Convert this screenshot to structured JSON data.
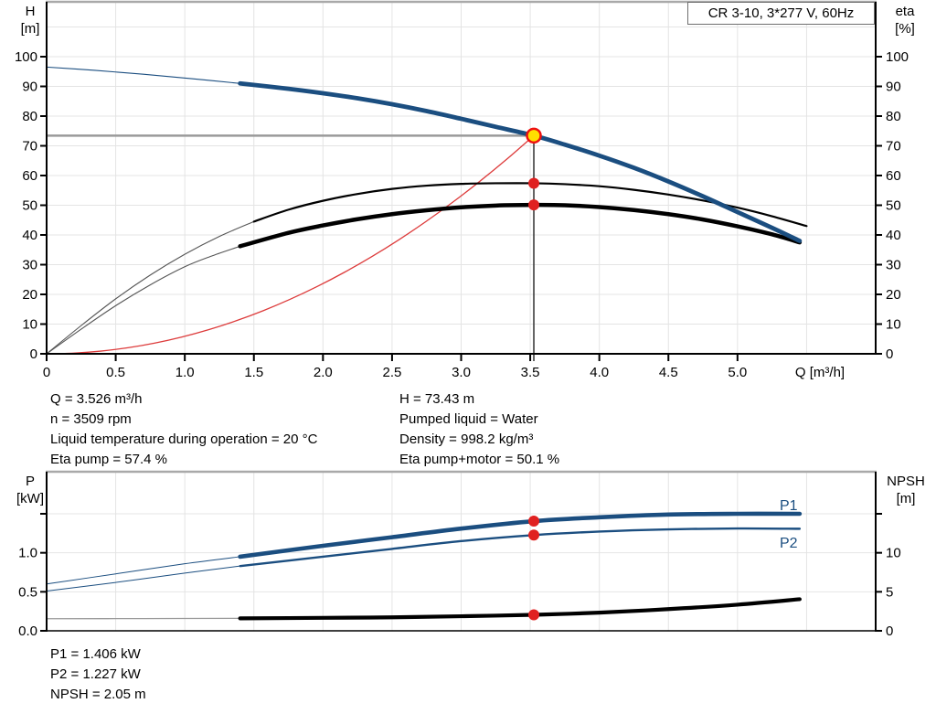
{
  "title_box": {
    "label": "CR 3-10, 3*277 V, 60Hz"
  },
  "colors": {
    "blue": "#1b4e80",
    "curve_black": "#000000",
    "red": "#e02020",
    "parabola_red": "#dd3b3b",
    "marker_fill": "#ffdf00",
    "marker_ring": "#ee1111",
    "grid": "#e4e4e4",
    "frame": "#a9a9a9",
    "duty_line_gray": "#9a9a9a",
    "duty_line_dark": "#3c3c3c",
    "thin_gray": "#555555",
    "npsh_thin_gray": "#999999"
  },
  "top_chart": {
    "left_axis_title": [
      "H",
      "[m]"
    ],
    "right_axis_title": [
      "eta",
      "[%]"
    ],
    "x_axis_title": "Q [m³/h]"
  },
  "bottom_chart": {
    "left_axis_title": [
      "P",
      "[kW]"
    ],
    "right_axis_title": [
      "NPSH",
      "[m]"
    ]
  },
  "annotations": {
    "left": [
      "Q = 3.526 m³/h",
      "n = 3509 rpm",
      "Liquid temperature during operation = 20 °C",
      "Eta pump = 57.4 %"
    ],
    "right": [
      "H = 73.43 m",
      "Pumped liquid = Water",
      "Density = 998.2 kg/m³",
      "Eta pump+motor = 50.1 %"
    ],
    "bottom": [
      "P1 = 1.406 kW",
      "P2 = 1.227 kW",
      "NPSH = 2.05 m"
    ]
  },
  "chart_data": [
    {
      "type": "line",
      "title": "CR 3-10, 3*277 V, 60Hz",
      "x_axis": {
        "label": "Q [m³/h]",
        "range": [
          0,
          6
        ],
        "grid_step": 0.5,
        "ticks": [
          {
            "v": 0,
            "label": "0"
          },
          {
            "v": 0.5,
            "label": "0.5"
          },
          {
            "v": 1,
            "label": "1.0"
          },
          {
            "v": 1.5,
            "label": "1.5"
          },
          {
            "v": 2,
            "label": "2.0"
          },
          {
            "v": 2.5,
            "label": "2.5"
          },
          {
            "v": 3,
            "label": "3.0"
          },
          {
            "v": 3.5,
            "label": "3.5"
          },
          {
            "v": 4,
            "label": "4.0"
          },
          {
            "v": 4.5,
            "label": "4.5"
          },
          {
            "v": 5,
            "label": "5.0"
          }
        ]
      },
      "y_left": {
        "label": "H [m]",
        "range": [
          0,
          118
        ],
        "ticks": [
          {
            "v": 0,
            "label": "0"
          },
          {
            "v": 10,
            "label": "10"
          },
          {
            "v": 20,
            "label": "20"
          },
          {
            "v": 30,
            "label": "30"
          },
          {
            "v": 40,
            "label": "40"
          },
          {
            "v": 50,
            "label": "50"
          },
          {
            "v": 60,
            "label": "60"
          },
          {
            "v": 70,
            "label": "70"
          },
          {
            "v": 80,
            "label": "80"
          },
          {
            "v": 90,
            "label": "90"
          },
          {
            "v": 100,
            "label": "100"
          }
        ]
      },
      "y_right": {
        "label": "eta [%]",
        "range": [
          0,
          118
        ],
        "ticks": [
          {
            "v": 0,
            "label": "0"
          },
          {
            "v": 10,
            "label": "10"
          },
          {
            "v": 20,
            "label": "20"
          },
          {
            "v": 30,
            "label": "30"
          },
          {
            "v": 40,
            "label": "40"
          },
          {
            "v": 50,
            "label": "50"
          },
          {
            "v": 60,
            "label": "60"
          },
          {
            "v": 70,
            "label": "70"
          },
          {
            "v": 80,
            "label": "80"
          },
          {
            "v": 90,
            "label": "90"
          },
          {
            "v": 100,
            "label": "100"
          }
        ]
      },
      "series": [
        {
          "name": "H",
          "label": "",
          "axis": "left",
          "color_key": "blue",
          "thick_from": 1.4,
          "x": [
            0,
            0.35,
            0.7,
            1.05,
            1.4,
            1.75,
            2,
            2.25,
            2.5,
            2.75,
            3,
            3.25,
            3.526,
            3.75,
            4,
            4.25,
            4.5,
            4.75,
            5,
            5.25,
            5.45
          ],
          "y": [
            96.5,
            95.4,
            94.1,
            92.6,
            91,
            89.2,
            87.7,
            86,
            84,
            81.7,
            79.1,
            76.4,
            73.43,
            70.4,
            66.7,
            62.6,
            58,
            53,
            47.7,
            42.4,
            38
          ]
        },
        {
          "name": "eta-pump",
          "label": "",
          "axis": "right",
          "color_key": "curve_black",
          "thick_from": 1.4,
          "x": [
            0,
            0.25,
            0.5,
            0.75,
            1,
            1.25,
            1.5,
            1.75,
            2,
            2.25,
            2.5,
            2.75,
            3,
            3.25,
            3.526,
            3.75,
            4,
            4.25,
            4.5,
            4.75,
            5,
            5.25,
            5.5
          ],
          "y": [
            0,
            9.5,
            18.5,
            26.5,
            33.5,
            39.5,
            44.5,
            48.5,
            51.5,
            53.8,
            55.5,
            56.6,
            57.2,
            57.4,
            57.4,
            57.1,
            56.4,
            55.2,
            53.6,
            51.6,
            49.2,
            46.3,
            43
          ]
        },
        {
          "name": "eta-pump-motor",
          "label": "",
          "axis": "right",
          "color_key": "curve_black",
          "thick_from": 1.4,
          "x": [
            0,
            0.25,
            0.5,
            0.75,
            1,
            1.2,
            1.4,
            1.75,
            2,
            2.25,
            2.5,
            2.75,
            3,
            3.25,
            3.526,
            3.75,
            4,
            4.25,
            4.5,
            4.75,
            5,
            5.25,
            5.45
          ],
          "y": [
            0,
            8.3,
            16.2,
            23.2,
            29.3,
            33,
            36.2,
            40.7,
            43.2,
            45.3,
            47,
            48.3,
            49.3,
            49.9,
            50.1,
            50,
            49.4,
            48.4,
            47,
            45.2,
            42.9,
            40.2,
            37.5
          ]
        }
      ],
      "extras": {
        "affinity_parabola_through_duty_point": true
      },
      "duty_point": {
        "Q": 3.526,
        "H": 73.43,
        "eta_pump": 57.4,
        "eta_pump_motor": 50.1
      }
    },
    {
      "type": "line",
      "x_axis": {
        "label": "",
        "range": [
          0,
          6
        ],
        "grid_step": 0.5,
        "ticks": []
      },
      "y_left": {
        "label": "P [kW]",
        "range": [
          0,
          2.04
        ],
        "ticks": [
          {
            "v": 0,
            "label": "0.0"
          },
          {
            "v": 0.5,
            "label": "0.5"
          },
          {
            "v": 1,
            "label": "1.0"
          },
          {
            "v": 1.5,
            "label": ""
          }
        ]
      },
      "y_right": {
        "label": "NPSH [m]",
        "range": [
          0,
          20.4
        ],
        "ticks": [
          {
            "v": 0,
            "label": "0"
          },
          {
            "v": 5,
            "label": "5"
          },
          {
            "v": 10,
            "label": "10"
          },
          {
            "v": 15,
            "label": ""
          }
        ]
      },
      "series": [
        {
          "name": "P1",
          "label": "P1",
          "axis": "left",
          "color_key": "blue",
          "thick_from": 1.4,
          "x": [
            0,
            0.5,
            1,
            1.4,
            2,
            2.5,
            3,
            3.526,
            4,
            4.5,
            5,
            5.45
          ],
          "y": [
            0.6,
            0.73,
            0.86,
            0.95,
            1.09,
            1.2,
            1.31,
            1.406,
            1.455,
            1.49,
            1.5,
            1.5
          ]
        },
        {
          "name": "P2",
          "label": "P2",
          "axis": "left",
          "color_key": "blue",
          "thick_from": 1.4,
          "x": [
            0,
            0.5,
            1,
            1.4,
            2,
            2.5,
            3,
            3.526,
            4,
            4.5,
            5,
            5.45
          ],
          "y": [
            0.51,
            0.62,
            0.74,
            0.83,
            0.95,
            1.05,
            1.15,
            1.227,
            1.272,
            1.3,
            1.312,
            1.308
          ]
        },
        {
          "name": "NPSH",
          "label": "",
          "axis": "right",
          "color_key": "curve_black",
          "thick_from": 1.4,
          "x": [
            0,
            0.7,
            1.4,
            2,
            2.5,
            3,
            3.526,
            4,
            4.5,
            5,
            5.45
          ],
          "y": [
            1.55,
            1.57,
            1.6,
            1.66,
            1.73,
            1.87,
            2.05,
            2.33,
            2.78,
            3.35,
            4.05
          ]
        }
      ],
      "duty_point": {
        "Q": 3.526,
        "P1": 1.406,
        "P2": 1.227,
        "NPSH": 2.05
      }
    }
  ]
}
